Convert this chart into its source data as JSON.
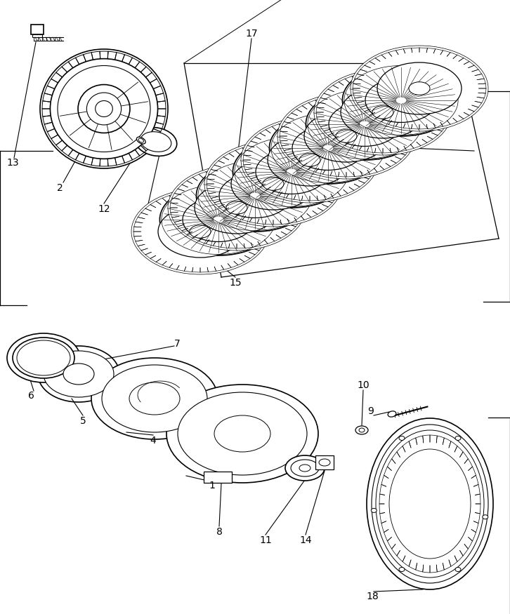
{
  "background_color": "#ffffff",
  "line_color": "#000000",
  "line_width": 1.2,
  "figure_width": 7.26,
  "figure_height": 8.75,
  "dpi": 100
}
